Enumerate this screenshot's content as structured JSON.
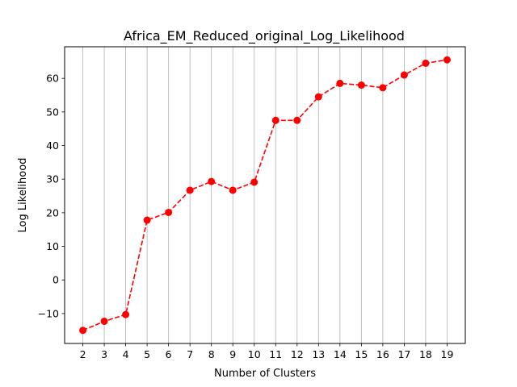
{
  "chart_data": {
    "type": "line",
    "title": "Africa_EM_Reduced_original_Log_Likelihood",
    "xlabel": "Number of Clusters",
    "ylabel": "Log Likelihood",
    "x": [
      2,
      3,
      4,
      5,
      6,
      7,
      8,
      9,
      10,
      11,
      12,
      13,
      14,
      15,
      16,
      17,
      18,
      19
    ],
    "series": [
      {
        "values": [
          -15.0,
          -12.3,
          -10.3,
          17.8,
          20.1,
          26.7,
          29.3,
          26.7,
          29.1,
          47.5,
          47.5,
          54.5,
          58.5,
          58.0,
          57.2,
          61.0,
          64.5,
          65.5
        ]
      }
    ],
    "xticks": [
      "2",
      "3",
      "4",
      "5",
      "6",
      "7",
      "8",
      "9",
      "10",
      "11",
      "12",
      "13",
      "14",
      "15",
      "16",
      "17",
      "18",
      "19"
    ],
    "yticks": [
      -10,
      0,
      10,
      20,
      30,
      40,
      50,
      60
    ],
    "ytick_labels": [
      "−10",
      "0",
      "10",
      "20",
      "30",
      "40",
      "50",
      "60"
    ],
    "xlim": [
      1.15,
      19.85
    ],
    "ylim": [
      -18.9,
      69.4
    ],
    "grid": "vertical",
    "line_style": "dashed",
    "marker": "circle",
    "colors": {
      "series": "#ff0000",
      "grid": "#b0b0b0",
      "axes": "#000000"
    }
  }
}
